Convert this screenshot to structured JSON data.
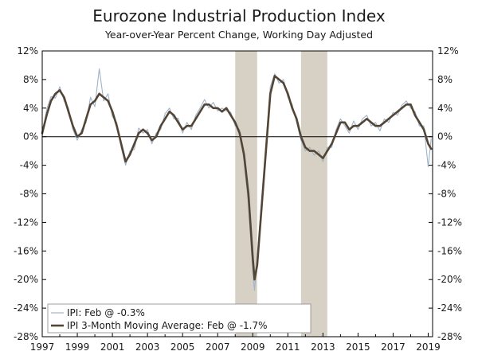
{
  "chart_data": {
    "type": "line",
    "title": "Eurozone Industrial Production Index",
    "subtitle": "Year-over-Year Percent Change, Working Day Adjusted",
    "xlabel": "",
    "ylabel": "",
    "xlim": [
      1997,
      2019.25
    ],
    "ylim": [
      -28,
      12
    ],
    "y_ticks": [
      12,
      8,
      4,
      0,
      -4,
      -8,
      -12,
      -16,
      -20,
      -24,
      -28
    ],
    "y_tick_labels": [
      "12%",
      "8%",
      "4%",
      "0%",
      "-4%",
      "-8%",
      "-12%",
      "-16%",
      "-20%",
      "-24%",
      "-28%"
    ],
    "x_ticks": [
      1997,
      1999,
      2001,
      2003,
      2005,
      2007,
      2009,
      2011,
      2013,
      2015,
      2017,
      2019
    ],
    "x_tick_labels": [
      "1997",
      "1999",
      "2001",
      "2003",
      "2005",
      "2007",
      "2009",
      "2011",
      "2013",
      "2015",
      "2017",
      "2019"
    ],
    "recessions": [
      {
        "start": 2008.0,
        "end": 2009.25
      },
      {
        "start": 2011.75,
        "end": 2013.25
      }
    ],
    "colors": {
      "ipi": "#9fb3cb",
      "ma": "#524536",
      "recession": "#d6d1c4",
      "axis": "#000000"
    },
    "legend": {
      "placement": "bottom-left",
      "items": [
        "IPI: Feb @ -0.3%",
        "IPI 3-Month Moving Average: Feb @ -1.7%"
      ]
    },
    "series": [
      {
        "name": "IPI 3-Month Moving Average",
        "x": [
          1997.0,
          1997.25,
          1997.5,
          1997.75,
          1998.0,
          1998.25,
          1998.5,
          1998.75,
          1999.0,
          1999.25,
          1999.5,
          1999.75,
          2000.0,
          2000.25,
          2000.5,
          2000.75,
          2001.0,
          2001.25,
          2001.5,
          2001.75,
          2002.0,
          2002.25,
          2002.5,
          2002.75,
          2003.0,
          2003.25,
          2003.5,
          2003.75,
          2004.0,
          2004.25,
          2004.5,
          2004.75,
          2005.0,
          2005.25,
          2005.5,
          2005.75,
          2006.0,
          2006.25,
          2006.5,
          2006.75,
          2007.0,
          2007.25,
          2007.5,
          2007.75,
          2008.0,
          2008.25,
          2008.5,
          2008.75,
          2009.0,
          2009.1,
          2009.25,
          2009.5,
          2009.75,
          2010.0,
          2010.25,
          2010.5,
          2010.75,
          2011.0,
          2011.25,
          2011.5,
          2011.75,
          2012.0,
          2012.25,
          2012.5,
          2012.75,
          2013.0,
          2013.25,
          2013.5,
          2013.75,
          2014.0,
          2014.25,
          2014.5,
          2014.75,
          2015.0,
          2015.25,
          2015.5,
          2015.75,
          2016.0,
          2016.25,
          2016.5,
          2016.75,
          2017.0,
          2017.25,
          2017.5,
          2017.75,
          2018.0,
          2018.25,
          2018.5,
          2018.75,
          2019.0,
          2019.17
        ],
        "values": [
          0.5,
          3.0,
          5.0,
          6.0,
          6.5,
          5.5,
          3.5,
          1.5,
          0.0,
          0.5,
          2.5,
          4.5,
          5.0,
          6.0,
          5.5,
          5.0,
          3.5,
          1.5,
          -1.0,
          -3.5,
          -2.5,
          -1.0,
          0.5,
          1.0,
          0.5,
          -0.5,
          0.0,
          1.5,
          2.5,
          3.5,
          3.0,
          2.0,
          1.0,
          1.5,
          1.5,
          2.5,
          3.5,
          4.5,
          4.5,
          4.0,
          4.0,
          3.5,
          4.0,
          3.0,
          2.0,
          0.5,
          -2.5,
          -8.0,
          -17.0,
          -20.0,
          -18.0,
          -10.0,
          -2.0,
          6.0,
          8.5,
          8.0,
          7.5,
          6.0,
          4.0,
          2.5,
          0.0,
          -1.5,
          -2.0,
          -2.0,
          -2.5,
          -3.0,
          -2.0,
          -1.0,
          0.5,
          2.0,
          2.0,
          1.0,
          1.5,
          1.5,
          2.0,
          2.5,
          2.0,
          1.5,
          1.5,
          2.0,
          2.5,
          3.0,
          3.5,
          4.0,
          4.5,
          4.5,
          3.0,
          2.0,
          1.0,
          -1.0,
          -1.7
        ]
      },
      {
        "name": "IPI",
        "x": [
          1997.0,
          1997.25,
          1997.5,
          1997.75,
          1998.0,
          1998.25,
          1998.5,
          1998.75,
          1999.0,
          1999.25,
          1999.5,
          1999.75,
          2000.0,
          2000.25,
          2000.5,
          2000.75,
          2001.0,
          2001.25,
          2001.5,
          2001.75,
          2002.0,
          2002.25,
          2002.5,
          2002.75,
          2003.0,
          2003.25,
          2003.5,
          2003.75,
          2004.0,
          2004.25,
          2004.5,
          2004.75,
          2005.0,
          2005.25,
          2005.5,
          2005.75,
          2006.0,
          2006.25,
          2006.5,
          2006.75,
          2007.0,
          2007.25,
          2007.5,
          2007.75,
          2008.0,
          2008.25,
          2008.5,
          2008.75,
          2009.0,
          2009.1,
          2009.25,
          2009.5,
          2009.75,
          2010.0,
          2010.25,
          2010.5,
          2010.75,
          2011.0,
          2011.25,
          2011.5,
          2011.75,
          2012.0,
          2012.25,
          2012.5,
          2012.75,
          2013.0,
          2013.25,
          2013.5,
          2013.75,
          2014.0,
          2014.25,
          2014.5,
          2014.75,
          2015.0,
          2015.25,
          2015.5,
          2015.75,
          2016.0,
          2016.25,
          2016.5,
          2016.75,
          2017.0,
          2017.25,
          2017.5,
          2017.75,
          2018.0,
          2018.25,
          2018.5,
          2018.75,
          2019.0,
          2019.17
        ],
        "values": [
          0.0,
          3.8,
          5.6,
          5.4,
          7.0,
          5.0,
          4.0,
          1.0,
          -0.5,
          1.0,
          2.0,
          5.5,
          4.2,
          9.5,
          5.0,
          6.0,
          2.8,
          2.0,
          -1.5,
          -4.0,
          -2.0,
          -1.8,
          1.2,
          0.5,
          1.0,
          -1.0,
          0.5,
          1.0,
          3.2,
          4.0,
          2.5,
          2.6,
          0.5,
          2.0,
          1.0,
          3.0,
          4.0,
          5.2,
          4.0,
          4.8,
          3.6,
          4.0,
          3.6,
          3.4,
          1.5,
          1.0,
          -3.5,
          -9.5,
          -19.0,
          -21.5,
          -17.0,
          -9.0,
          -1.0,
          7.0,
          8.8,
          7.5,
          8.0,
          5.5,
          4.5,
          2.0,
          -0.5,
          -2.0,
          -1.5,
          -2.6,
          -2.0,
          -3.5,
          -1.5,
          -1.5,
          1.0,
          2.5,
          1.5,
          0.5,
          2.2,
          1.0,
          2.5,
          3.0,
          1.5,
          2.0,
          0.8,
          2.5,
          2.0,
          3.4,
          3.0,
          4.4,
          5.0,
          4.0,
          3.5,
          1.5,
          1.5,
          -4.2,
          -0.3
        ]
      }
    ]
  }
}
